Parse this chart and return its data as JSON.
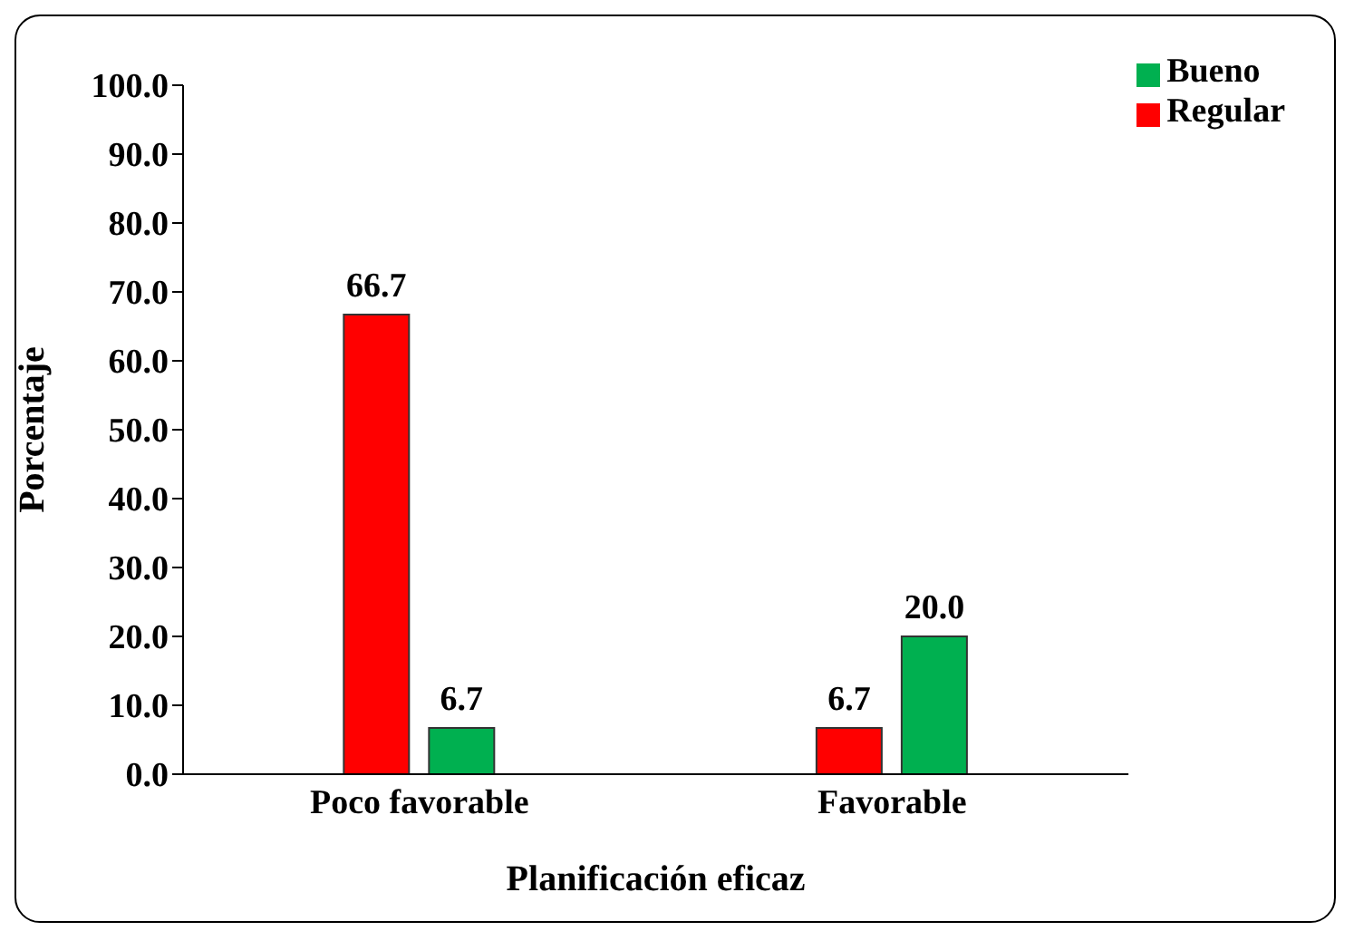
{
  "chart_data": {
    "type": "bar",
    "xlabel": "Planificación eficaz",
    "ylabel": "Porcentaje",
    "categories": [
      "Poco favorable",
      "Favorable"
    ],
    "series": [
      {
        "name": "Regular",
        "color": "#ff0000",
        "values": [
          66.7,
          6.7
        ],
        "value_labels": [
          "66.7",
          "6.7"
        ]
      },
      {
        "name": "Bueno",
        "color": "#00b050",
        "values": [
          6.7,
          20.0
        ],
        "value_labels": [
          "6.7",
          "20.0"
        ]
      }
    ],
    "ylim": [
      0,
      100
    ],
    "yticks": [
      {
        "value": 0,
        "label": "0.0"
      },
      {
        "value": 10,
        "label": "10.0"
      },
      {
        "value": 20,
        "label": "20.0"
      },
      {
        "value": 30,
        "label": "30.0"
      },
      {
        "value": 40,
        "label": "40.0"
      },
      {
        "value": 50,
        "label": "50.0"
      },
      {
        "value": 60,
        "label": "60.0"
      },
      {
        "value": 70,
        "label": "70.0"
      },
      {
        "value": 80,
        "label": "80.0"
      },
      {
        "value": 90,
        "label": "90.0"
      },
      {
        "value": 100,
        "label": "100.0"
      }
    ],
    "grid": false,
    "legend": "top right"
  }
}
